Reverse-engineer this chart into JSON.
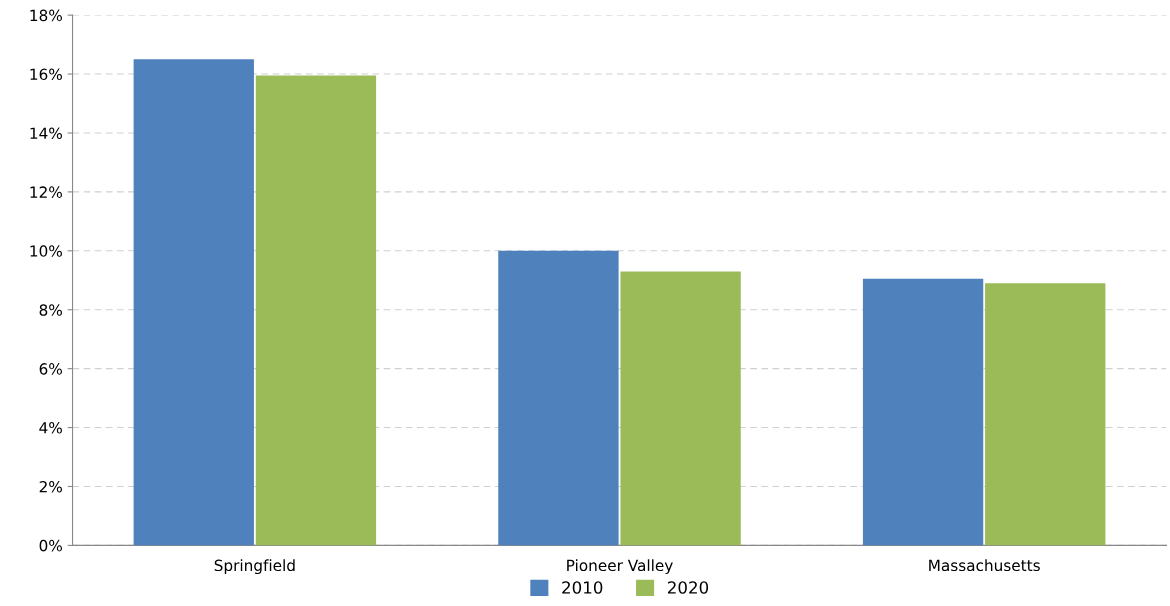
{
  "chart_data": {
    "type": "bar",
    "categories": [
      "Springfield",
      "Pioneer Valley",
      "Massachusetts"
    ],
    "series": [
      {
        "name": "2010",
        "color": "#4f81bd",
        "values": [
          16.5,
          10.0,
          9.05
        ]
      },
      {
        "name": "2020",
        "color": "#9bbb59",
        "values": [
          15.95,
          9.3,
          8.9
        ]
      }
    ],
    "ylim": [
      0,
      18
    ],
    "yticks": [
      {
        "value": 0,
        "label": "0%"
      },
      {
        "value": 2,
        "label": "2%"
      },
      {
        "value": 4,
        "label": "4%"
      },
      {
        "value": 6,
        "label": "6%"
      },
      {
        "value": 8,
        "label": "8%"
      },
      {
        "value": 10,
        "label": "10%"
      },
      {
        "value": 12,
        "label": "12%"
      },
      {
        "value": 14,
        "label": "14%"
      },
      {
        "value": 16,
        "label": "16%"
      },
      {
        "value": 18,
        "label": "18%"
      }
    ],
    "grid": "y",
    "legend": "bottom"
  }
}
